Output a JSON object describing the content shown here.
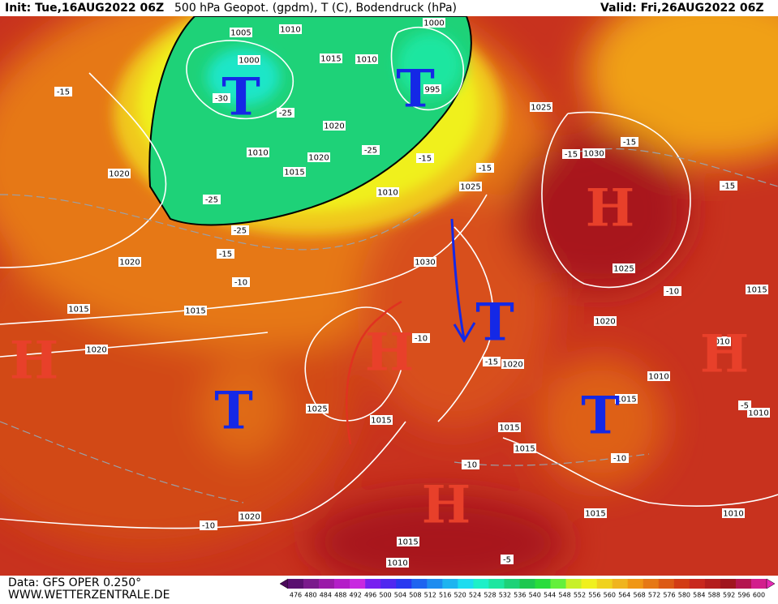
{
  "header": {
    "init": "Init: Tue,16AUG2022 06Z",
    "title": "500 hPa Geopot. (gpdm), T (C), Bodendruck (hPa)",
    "valid": "Valid: Fri,26AUG2022 06Z"
  },
  "systems": [
    "T",
    "T",
    "H",
    "H",
    "T",
    "H",
    "T",
    "T",
    "H",
    "H"
  ],
  "isobar_labels": [
    "1005",
    "1010",
    "1000",
    "1015",
    "1010",
    "1000",
    "995",
    "1020",
    "1010",
    "1020",
    "1015",
    "1010",
    "1025",
    "1030",
    "1025",
    "1020",
    "1020",
    "1030",
    "1015",
    "1015",
    "1025",
    "1015",
    "1020",
    "1020",
    "1020",
    "1010",
    "1015",
    "1025",
    "1015",
    "1015",
    "1015",
    "1010",
    "1010",
    "1020",
    "1015",
    "1010",
    "1015",
    "1010"
  ],
  "temperature_labels": [
    "-15",
    "-30",
    "-25",
    "-25",
    "-15",
    "-15",
    "-15",
    "-15",
    "-15",
    "-25",
    "-25",
    "-15",
    "-10",
    "-10",
    "-10",
    "-15",
    "-10",
    "-10",
    "-5",
    "-10",
    "-5"
  ],
  "footer": {
    "data": "Data: GFS OPER 0.250°",
    "site": "WWW.WETTERZENTRALE.DE"
  },
  "legend": {
    "levels": [
      476,
      480,
      484,
      488,
      492,
      496,
      500,
      504,
      508,
      512,
      516,
      520,
      524,
      528,
      532,
      536,
      540,
      544,
      548,
      552,
      556,
      560,
      564,
      568,
      572,
      576,
      580,
      584,
      588,
      592,
      596,
      600
    ],
    "colors": [
      "#4b0a5a",
      "#5a1070",
      "#7a1a8c",
      "#9a1aa8",
      "#b41ec8",
      "#c828e0",
      "#7820f0",
      "#5028f0",
      "#2838f0",
      "#1e64f0",
      "#1e8cf0",
      "#1eb4f0",
      "#1edcf0",
      "#1ef0c8",
      "#1ee6a0",
      "#1ed278",
      "#1ec850",
      "#28dc3c",
      "#64f03c",
      "#c8f028",
      "#f0f01e",
      "#f0d21e",
      "#f0b41e",
      "#f09614",
      "#e67814",
      "#dc5a14",
      "#d23c14",
      "#c8281e",
      "#b41e1e",
      "#a0141e",
      "#b41450",
      "#d21e8c",
      "#e628b4"
    ]
  }
}
